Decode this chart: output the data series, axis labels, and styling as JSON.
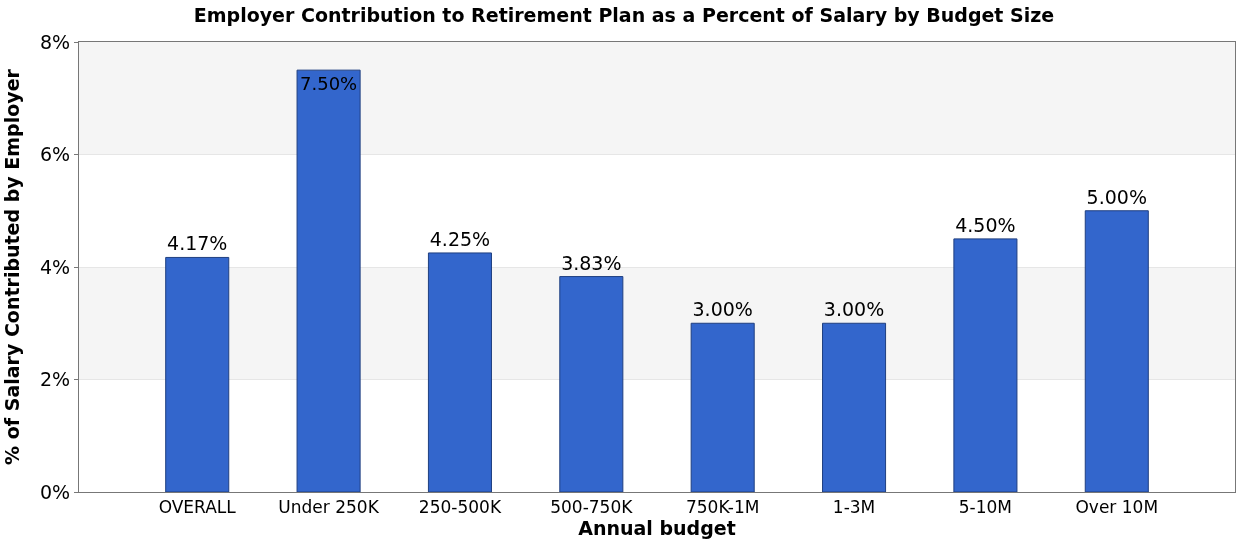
{
  "chart_data": {
    "type": "bar",
    "title": "Employer Contribution to Retirement Plan as a Percent of Salary by Budget Size",
    "xlabel": "Annual budget",
    "ylabel": "% of Salary Contributed by Employer",
    "categories": [
      "OVERALL",
      "Under 250K",
      "250-500K",
      "500-750K",
      "750K-1M",
      "1-3M",
      "5-10M",
      "Over 10M"
    ],
    "values": [
      4.17,
      7.5,
      4.25,
      3.83,
      3.0,
      3.0,
      4.5,
      5.0
    ],
    "value_labels": [
      "4.17%",
      "7.50%",
      "4.25%",
      "3.83%",
      "3.00%",
      "3.00%",
      "4.50%",
      "5.00%"
    ],
    "color": "#3366cc",
    "ylim": [
      0,
      8
    ],
    "yticks": [
      {
        "value": 0,
        "label": "0%"
      },
      {
        "value": 2,
        "label": "2%"
      },
      {
        "value": 4,
        "label": "4%"
      },
      {
        "value": 6,
        "label": "6%"
      },
      {
        "value": 8,
        "label": "8%"
      }
    ],
    "bands": [
      {
        "axis": "y",
        "from": 2,
        "to": 4,
        "color": "#f5f5f5"
      },
      {
        "axis": "y",
        "from": 6,
        "to": 8,
        "color": "#f5f5f5"
      }
    ],
    "grid": "y",
    "legend": false
  }
}
